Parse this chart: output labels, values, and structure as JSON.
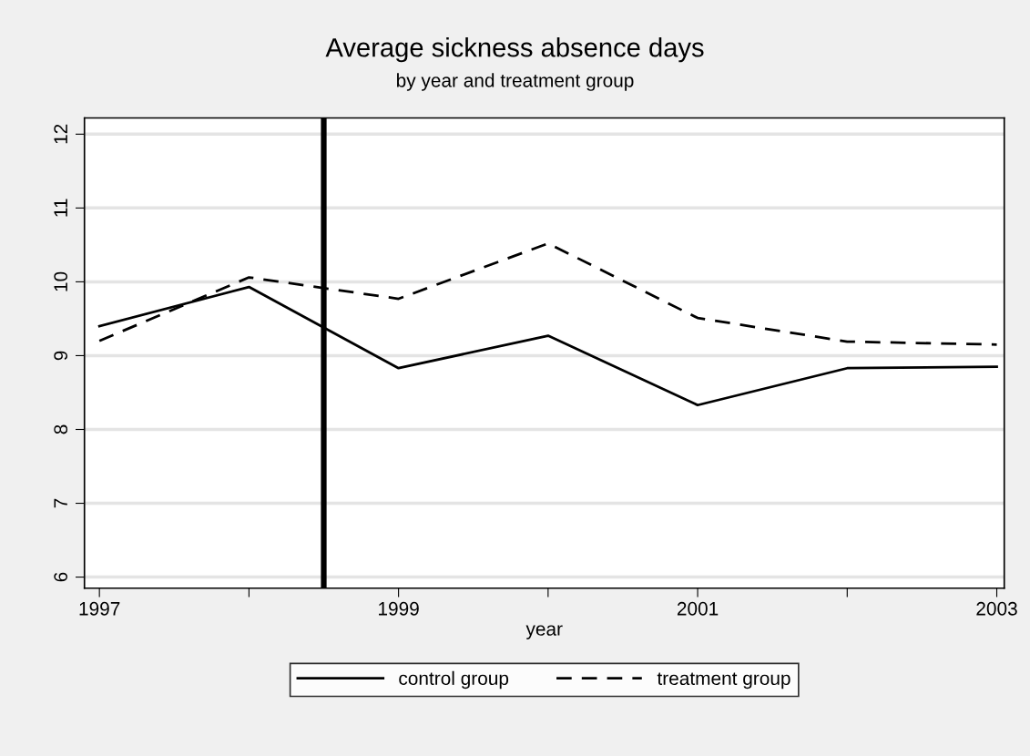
{
  "chart_data": {
    "type": "line",
    "title": "Average sickness absence days",
    "subtitle": "by year and treatment group",
    "xlabel": "year",
    "x": [
      1997,
      1998,
      1999,
      2000,
      2001,
      2002,
      2003
    ],
    "series": [
      {
        "name": "control group",
        "color": "#000000",
        "line_style": "solid",
        "values": [
          9.4,
          9.93,
          8.83,
          9.27,
          8.33,
          8.83,
          8.85
        ]
      },
      {
        "name": "treatment group",
        "color": "#000000",
        "line_style": "dashed",
        "values": [
          9.2,
          10.06,
          9.77,
          10.52,
          9.51,
          9.19,
          9.15
        ]
      }
    ],
    "xlim": [
      1996.9,
      2003.05
    ],
    "ylim": [
      5.85,
      12.22
    ],
    "xticks": [
      1997,
      {
        "value": 1998,
        "label": null
      },
      1999,
      {
        "value": 2000,
        "label": null
      },
      2001,
      {
        "value": 2002,
        "label": null
      },
      2003
    ],
    "yticks": [
      6,
      7,
      8,
      9,
      10,
      11,
      12
    ],
    "ref_lines": [
      {
        "axis": "x",
        "value": 1998.5,
        "color": "#000000"
      }
    ],
    "grid": "y",
    "legend": "bottom",
    "marker": "none"
  }
}
